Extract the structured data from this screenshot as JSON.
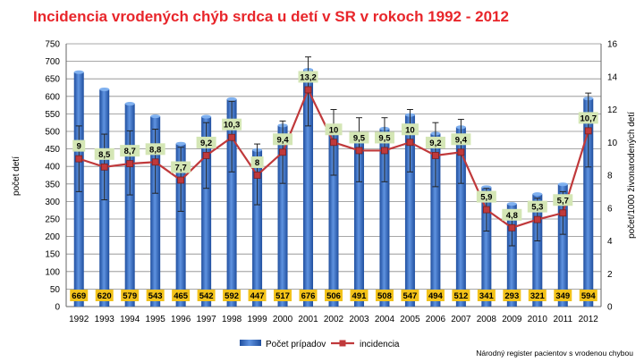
{
  "chart_data": {
    "type": "bar",
    "title": "Incidencia vrodených chýb srdca u detí v SR v rokoch 1992 - 2012",
    "ylabel_left": "počet detí",
    "ylabel_right": "počet/1000 živonarodených detí",
    "source": "Národný register pacientov s vrodenou chybou",
    "categories": [
      "1992",
      "1993",
      "1994",
      "1995",
      "1996",
      "1997",
      "1998",
      "1999",
      "2000",
      "2001",
      "2002",
      "2003",
      "2004",
      "2005",
      "2006",
      "2007",
      "2008",
      "2009",
      "2010",
      "2011",
      "2012"
    ],
    "ylim_left": [
      0,
      750
    ],
    "yticks_left": [
      0,
      50,
      100,
      150,
      200,
      250,
      300,
      350,
      400,
      450,
      500,
      550,
      600,
      650,
      700,
      750
    ],
    "ylim_right": [
      0,
      16
    ],
    "yticks_right": [
      0,
      2,
      4,
      6,
      8,
      10,
      12,
      14,
      16
    ],
    "grid": true,
    "legend_position": "bottom",
    "series": [
      {
        "name": "Počet prípadov",
        "type": "bar",
        "axis": "left",
        "color": "#3a6fc4",
        "values": [
          669,
          620,
          579,
          543,
          465,
          542,
          592,
          447,
          517,
          676,
          506,
          491,
          508,
          547,
          494,
          512,
          341,
          293,
          321,
          349,
          594
        ],
        "labels": [
          "669",
          "620",
          "579",
          "543",
          "465",
          "542",
          "592",
          "447",
          "517",
          "676",
          "506",
          "491",
          "508",
          "547",
          "494",
          "512",
          "341",
          "293",
          "321",
          "349",
          "594"
        ],
        "label_bg": "#f2c21a"
      },
      {
        "name": "incidencia",
        "type": "line",
        "axis": "right",
        "color": "#c0393b",
        "values": [
          9,
          8.5,
          8.7,
          8.8,
          7.7,
          9.2,
          10.3,
          8,
          9.4,
          13.2,
          10,
          9.5,
          9.5,
          10,
          9.2,
          9.4,
          5.9,
          4.8,
          5.3,
          5.7,
          10.7
        ],
        "labels": [
          "9",
          "8,5",
          "8,7",
          "8,8",
          "7,7",
          "9,2",
          "10,3",
          "8",
          "9,4",
          "13,2",
          "10",
          "9,5",
          "9,5",
          "10",
          "9,2",
          "9,4",
          "5,9",
          "4,8",
          "5,3",
          "5,7",
          "10,7"
        ],
        "error_low": [
          7.0,
          6.5,
          6.8,
          6.9,
          5.8,
          7.2,
          8.2,
          6.2,
          7.5,
          11.0,
          8.0,
          7.6,
          7.6,
          8.2,
          7.3,
          7.5,
          4.6,
          3.7,
          4.0,
          4.4,
          8.5
        ],
        "error_high": [
          11.0,
          10.5,
          10.7,
          10.8,
          9.7,
          11.2,
          12.5,
          9.9,
          11.3,
          15.2,
          12.0,
          11.5,
          11.5,
          12.0,
          11.2,
          11.4,
          7.2,
          5.9,
          6.6,
          7.0,
          13.0
        ],
        "label_bg": "#d4e6b5"
      }
    ]
  }
}
